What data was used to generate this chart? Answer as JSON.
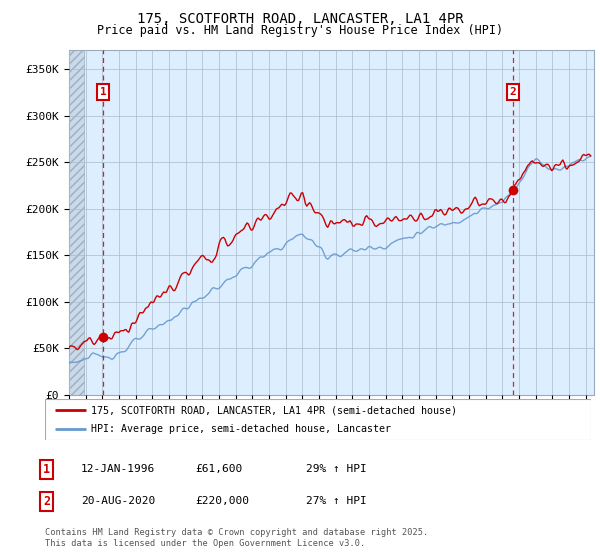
{
  "title1": "175, SCOTFORTH ROAD, LANCASTER, LA1 4PR",
  "title2": "Price paid vs. HM Land Registry's House Price Index (HPI)",
  "xlim_start": 1994.0,
  "xlim_end": 2025.5,
  "ylim_bottom": 0,
  "ylim_top": 370000,
  "yticks": [
    0,
    50000,
    100000,
    150000,
    200000,
    250000,
    300000,
    350000
  ],
  "ytick_labels": [
    "£0",
    "£50K",
    "£100K",
    "£150K",
    "£200K",
    "£250K",
    "£300K",
    "£350K"
  ],
  "xticks": [
    1994,
    1995,
    1996,
    1997,
    1998,
    1999,
    2000,
    2001,
    2002,
    2003,
    2004,
    2005,
    2006,
    2007,
    2008,
    2009,
    2010,
    2011,
    2012,
    2013,
    2014,
    2015,
    2016,
    2017,
    2018,
    2019,
    2020,
    2021,
    2022,
    2023,
    2024,
    2025
  ],
  "legend1_label": "175, SCOTFORTH ROAD, LANCASTER, LA1 4PR (semi-detached house)",
  "legend2_label": "HPI: Average price, semi-detached house, Lancaster",
  "legend1_color": "#cc0000",
  "legend2_color": "#6699cc",
  "point1_x": 1996.04,
  "point1_y": 61600,
  "point2_x": 2020.63,
  "point2_y": 220000,
  "table_rows": [
    [
      "1",
      "12-JAN-1996",
      "£61,600",
      "29% ↑ HPI"
    ],
    [
      "2",
      "20-AUG-2020",
      "£220,000",
      "27% ↑ HPI"
    ]
  ],
  "footnote": "Contains HM Land Registry data © Crown copyright and database right 2025.\nThis data is licensed under the Open Government Licence v3.0.",
  "bg_color": "#ffffff",
  "plot_bg_color": "#ddeeff",
  "grid_color": "#aabbcc",
  "hatch_region_end": 1994.9
}
